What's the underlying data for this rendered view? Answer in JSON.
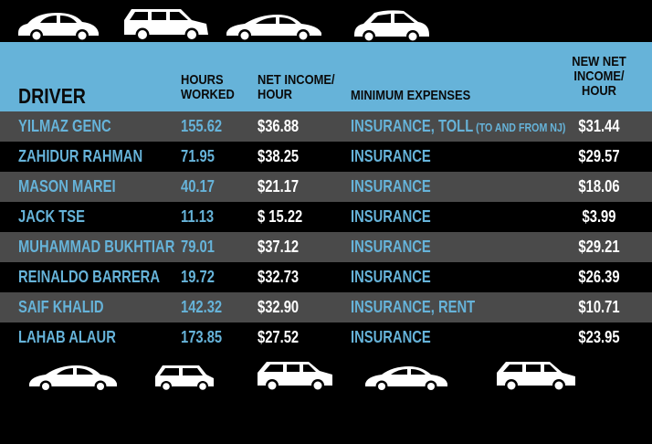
{
  "table": {
    "headers": {
      "driver": "DRIVER",
      "hours_line1": "HOURS",
      "hours_line2": "WORKED",
      "net_line1": "NET INCOME/",
      "net_line2": "HOUR",
      "expenses": "MINIMUM EXPENSES",
      "newnet_line1": "NEW NET",
      "newnet_line2": "INCOME/",
      "newnet_line3": "HOUR"
    },
    "rows": [
      {
        "driver": "YILMAZ GENC",
        "hours": "155.62",
        "net": "$36.88",
        "expenses": "INSURANCE, TOLL",
        "expenses_note": " (TO AND FROM NJ)",
        "new_net": "$31.44"
      },
      {
        "driver": "ZAHIDUR RAHMAN",
        "hours": "71.95",
        "net": "$38.25",
        "expenses": "INSURANCE",
        "expenses_note": "",
        "new_net": "$29.57"
      },
      {
        "driver": "MASON MAREI",
        "hours": "40.17",
        "net": "$21.17",
        "expenses": "INSURANCE",
        "expenses_note": "",
        "new_net": "$18.06"
      },
      {
        "driver": "JACK TSE",
        "hours": "11.13",
        "net": "$ 15.22",
        "expenses": "INSURANCE",
        "expenses_note": "",
        "new_net": "$3.99"
      },
      {
        "driver": "MUHAMMAD BUKHTIAR",
        "hours": "79.01",
        "net": "$37.12",
        "expenses": "INSURANCE",
        "expenses_note": "",
        "new_net": "$29.21"
      },
      {
        "driver": "REINALDO BARRERA",
        "hours": "19.72",
        "net": "$32.73",
        "expenses": "INSURANCE",
        "expenses_note": "",
        "new_net": "$26.39"
      },
      {
        "driver": "SAIF KHALID",
        "hours": "142.32",
        "net": "$32.90",
        "expenses": "INSURANCE, RENT",
        "expenses_note": "",
        "new_net": "$10.71"
      },
      {
        "driver": "LAHAB ALAUR",
        "hours": "173.85",
        "net": "$27.52",
        "expenses": "INSURANCE",
        "expenses_note": "",
        "new_net": "$23.95"
      }
    ]
  },
  "icons": {
    "top": [
      "beetle-car-icon",
      "suv-car-icon",
      "sedan-car-icon",
      "hatchback-car-icon"
    ],
    "bottom": [
      "sedan-car-icon",
      "mini-car-icon",
      "suv-car-icon",
      "sedan-car-icon",
      "suv-car-icon"
    ]
  },
  "colors": {
    "header_band": "#66b3d9",
    "accent_text": "#66b3d9",
    "row_shade": "#4a4a4a",
    "background": "#000000"
  }
}
